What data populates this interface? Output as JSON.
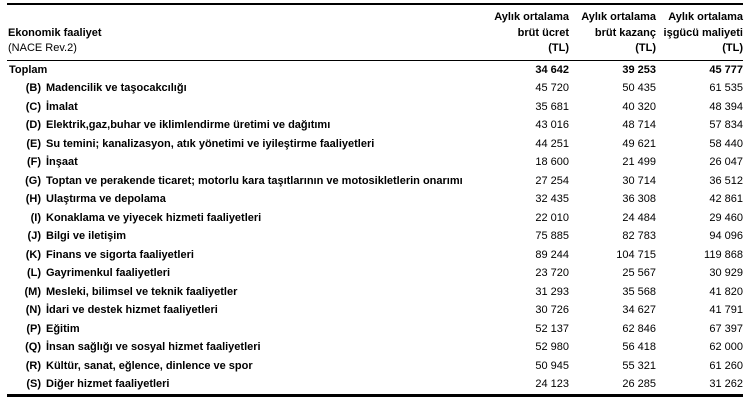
{
  "table": {
    "row_header_title": "Ekonomik faaliyet",
    "row_header_subtitle": "(NACE Rev.2)",
    "columns": [
      {
        "line1": "Aylık ortalama",
        "line2": "brüt ücret",
        "line3": "(TL)"
      },
      {
        "line1": "Aylık ortalama",
        "line2": "brüt kazanç",
        "line3": "(TL)"
      },
      {
        "line1": "Aylık ortalama",
        "line2": "işgücü maliyeti",
        "line3": "(TL)"
      }
    ],
    "rows": [
      {
        "code": "",
        "label": "Toplam",
        "bold": true,
        "values": [
          "34 642",
          "39 253",
          "45 777"
        ]
      },
      {
        "code": "(B)",
        "label": "Madencilik ve taşocakcılığı",
        "bold": false,
        "values": [
          "45 720",
          "50 435",
          "61 535"
        ]
      },
      {
        "code": "(C)",
        "label": "İmalat",
        "bold": false,
        "values": [
          "35 681",
          "40 320",
          "48 394"
        ]
      },
      {
        "code": "(D)",
        "label": "Elektrik,gaz,buhar ve iklimlendirme üretimi ve dağıtımı",
        "bold": false,
        "values": [
          "43 016",
          "48 714",
          "57 834"
        ]
      },
      {
        "code": "(E)",
        "label": "Su temini; kanalizasyon, atık yönetimi ve iyileştirme faaliyetleri",
        "bold": false,
        "values": [
          "44 251",
          "49 621",
          "58 440"
        ]
      },
      {
        "code": "(F)",
        "label": "İnşaat",
        "bold": false,
        "values": [
          "18 600",
          "21 499",
          "26 047"
        ]
      },
      {
        "code": "(G)",
        "label": "Toptan ve perakende ticaret; motorlu kara taşıtlarının ve motosikletlerin onarımı",
        "bold": false,
        "values": [
          "27 254",
          "30 714",
          "36 512"
        ]
      },
      {
        "code": "(H)",
        "label": "Ulaştırma ve depolama",
        "bold": false,
        "values": [
          "32 435",
          "36 308",
          "42 861"
        ]
      },
      {
        "code": "(I)",
        "label": "Konaklama ve yiyecek hizmeti faaliyetleri",
        "bold": false,
        "values": [
          "22 010",
          "24 484",
          "29 460"
        ]
      },
      {
        "code": "(J)",
        "label": "Bilgi ve iletişim",
        "bold": false,
        "values": [
          "75 885",
          "82 783",
          "94 096"
        ]
      },
      {
        "code": "(K)",
        "label": "Finans ve sigorta faaliyetleri",
        "bold": false,
        "values": [
          "89 244",
          "104 715",
          "119 868"
        ]
      },
      {
        "code": "(L)",
        "label": "Gayrimenkul faaliyetleri",
        "bold": false,
        "values": [
          "23 720",
          "25 567",
          "30 929"
        ]
      },
      {
        "code": "(M)",
        "label": "Mesleki, bilimsel ve teknik faaliyetler",
        "bold": false,
        "values": [
          "31 293",
          "35 568",
          "41 820"
        ]
      },
      {
        "code": "(N)",
        "label": "İdari ve destek hizmet faaliyetleri",
        "bold": false,
        "values": [
          "30 726",
          "34 627",
          "41 791"
        ]
      },
      {
        "code": "(P)",
        "label": "Eğitim",
        "bold": false,
        "values": [
          "52 137",
          "62 846",
          "67 397"
        ]
      },
      {
        "code": "(Q)",
        "label": "İnsan sağlığı ve sosyal hizmet faaliyetleri",
        "bold": false,
        "values": [
          "52 980",
          "56 418",
          "62 000"
        ]
      },
      {
        "code": "(R)",
        "label": "Kültür, sanat, eğlence, dinlence ve spor",
        "bold": false,
        "values": [
          "50 945",
          "55 321",
          "61 260"
        ]
      },
      {
        "code": "(S)",
        "label": "Diğer hizmet faaliyetleri",
        "bold": false,
        "values": [
          "24 123",
          "26 285",
          "31 262"
        ]
      }
    ]
  },
  "chart_data": {
    "type": "table",
    "title": "",
    "columns": [
      "Ekonomik faaliyet (NACE Rev.2)",
      "Aylık ortalama brüt ücret (TL)",
      "Aylık ortalama brüt kazanç (TL)",
      "Aylık ortalama işgücü maliyeti (TL)"
    ],
    "rows": [
      [
        "Toplam",
        34642,
        39253,
        45777
      ],
      [
        "(B) Madencilik ve taşocakcılığı",
        45720,
        50435,
        61535
      ],
      [
        "(C) İmalat",
        35681,
        40320,
        48394
      ],
      [
        "(D) Elektrik,gaz,buhar ve iklimlendirme üretimi ve dağıtımı",
        43016,
        48714,
        57834
      ],
      [
        "(E) Su temini; kanalizasyon, atık yönetimi ve iyileştirme faaliyetleri",
        44251,
        49621,
        58440
      ],
      [
        "(F) İnşaat",
        18600,
        21499,
        26047
      ],
      [
        "(G) Toptan ve perakende ticaret; motorlu kara taşıtlarının ve motosikletlerin onarımı",
        27254,
        30714,
        36512
      ],
      [
        "(H) Ulaştırma ve depolama",
        32435,
        36308,
        42861
      ],
      [
        "(I) Konaklama ve yiyecek hizmeti faaliyetleri",
        22010,
        24484,
        29460
      ],
      [
        "(J) Bilgi ve iletişim",
        75885,
        82783,
        94096
      ],
      [
        "(K) Finans ve sigorta faaliyetleri",
        89244,
        104715,
        119868
      ],
      [
        "(L) Gayrimenkul faaliyetleri",
        23720,
        25567,
        30929
      ],
      [
        "(M) Mesleki, bilimsel ve teknik faaliyetler",
        31293,
        35568,
        41820
      ],
      [
        "(N) İdari ve destek hizmet faaliyetleri",
        30726,
        34627,
        41791
      ],
      [
        "(P) Eğitim",
        52137,
        62846,
        67397
      ],
      [
        "(Q) İnsan sağlığı ve sosyal hizmet faaliyetleri",
        52980,
        56418,
        62000
      ],
      [
        "(R) Kültür, sanat, eğlence, dinlence ve spor",
        50945,
        55321,
        61260
      ],
      [
        "(S) Diğer hizmet faaliyetleri",
        24123,
        26285,
        31262
      ]
    ]
  }
}
